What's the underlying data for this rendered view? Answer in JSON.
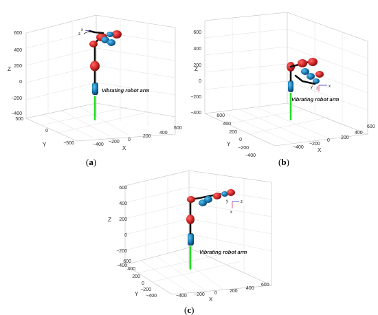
{
  "panels": [
    {
      "id": "a",
      "caption": "a",
      "annotation": "Vibrating robot arm",
      "frame_labels": [
        "x",
        "z"
      ],
      "z_ticks": [
        "600",
        "400",
        "200",
        "0",
        "−200",
        "−400"
      ],
      "x_ticks": [
        "−400",
        "−200",
        "0",
        "200",
        "400",
        "600"
      ],
      "y_ticks": [
        "500",
        "0",
        "−500"
      ],
      "axis_labels": {
        "x": "X",
        "y": "Y",
        "z": "Z"
      }
    },
    {
      "id": "b",
      "caption": "b",
      "annotation": "Vibrating robot arm",
      "frame_labels": [
        "y",
        "z",
        "x"
      ],
      "z_ticks": [
        "600",
        "400",
        "200",
        "0",
        "−200",
        "−400"
      ],
      "x_ticks": [
        "−400",
        "−200",
        "0",
        "200",
        "400",
        "600"
      ],
      "y_ticks": [
        "600",
        "400",
        "200",
        "0",
        "−200",
        "−400"
      ],
      "axis_labels": {
        "x": "X",
        "y": "Y",
        "z": "Z"
      }
    },
    {
      "id": "c",
      "caption": "c",
      "annotation": "Vibrating robot arm",
      "frame_labels": [
        "y",
        "z",
        "x"
      ],
      "z_ticks": [
        "600",
        "400",
        "200",
        "0",
        "−200",
        "−400"
      ],
      "x_ticks": [
        "−400",
        "−200",
        "0",
        "200",
        "400",
        "600"
      ],
      "y_ticks": [
        "600",
        "400",
        "200",
        "0",
        "−200",
        "−400"
      ],
      "axis_labels": {
        "x": "X",
        "y": "Y",
        "z": "Z"
      }
    }
  ],
  "colors": {
    "joint_red": "#d42a2a",
    "link_blue": "#1c7fb8",
    "base_green": "#22dd22",
    "link_black": "#111111"
  }
}
